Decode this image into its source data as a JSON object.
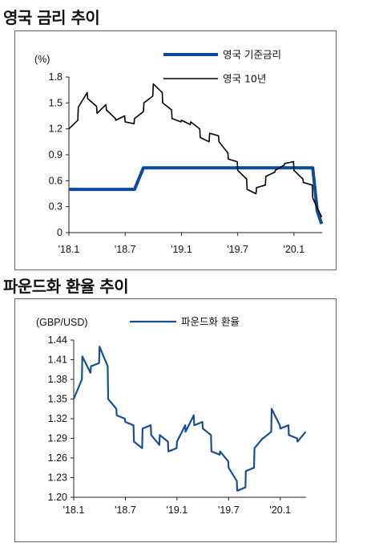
{
  "titles": {
    "top": "영국 금리 추이",
    "bottom": "파운드화 환율 추이"
  },
  "colors": {
    "policy_rate": "#0b4a9c",
    "gilt_10y": "#000000",
    "gbp_usd": "#174f96"
  },
  "chart_data": [
    {
      "type": "line",
      "unit_label": "(%)",
      "ylim": [
        0,
        1.8
      ],
      "yticks": [
        "1.8",
        "1.5",
        "1.2",
        "0.9",
        "0.6",
        "0.3",
        "0"
      ],
      "ytick_values": [
        1.8,
        1.5,
        1.2,
        0.9,
        0.6,
        0.3,
        0
      ],
      "xlim": [
        "2018-01",
        "2020-04"
      ],
      "xticks": [
        "'18.1",
        "'18.7",
        "'19.1",
        "'19.7",
        "'20.1"
      ],
      "xtick_values": [
        "2018-01",
        "2018-07",
        "2019-01",
        "2019-07",
        "2020-01"
      ],
      "legend_position": "top-right",
      "series": [
        {
          "name": "영국 기준금리",
          "style": "step",
          "points": [
            [
              "2018-01",
              0.5
            ],
            [
              "2018-08",
              0.5
            ],
            [
              "2018-08",
              0.75
            ],
            [
              "2020-03",
              0.75
            ],
            [
              "2020-03",
              0.25
            ],
            [
              "2020-03",
              0.1
            ]
          ]
        },
        {
          "name": "영국 10년",
          "points": [
            [
              "2018-01",
              1.2
            ],
            [
              "2018-01",
              1.3
            ],
            [
              "2018-02",
              1.45
            ],
            [
              "2018-02",
              1.62
            ],
            [
              "2018-03",
              1.55
            ],
            [
              "2018-03",
              1.46
            ],
            [
              "2018-04",
              1.38
            ],
            [
              "2018-04",
              1.48
            ],
            [
              "2018-05",
              1.42
            ],
            [
              "2018-05",
              1.32
            ],
            [
              "2018-06",
              1.3
            ],
            [
              "2018-06",
              1.35
            ],
            [
              "2018-07",
              1.28
            ],
            [
              "2018-07",
              1.26
            ],
            [
              "2018-08",
              1.32
            ],
            [
              "2018-08",
              1.4
            ],
            [
              "2018-09",
              1.5
            ],
            [
              "2018-09",
              1.58
            ],
            [
              "2018-10",
              1.72
            ],
            [
              "2018-10",
              1.62
            ],
            [
              "2018-11",
              1.5
            ],
            [
              "2018-11",
              1.42
            ],
            [
              "2018-12",
              1.32
            ],
            [
              "2018-12",
              1.28
            ],
            [
              "2019-01",
              1.3
            ],
            [
              "2019-01",
              1.25
            ],
            [
              "2019-02",
              1.28
            ],
            [
              "2019-02",
              1.2
            ],
            [
              "2019-03",
              1.1
            ],
            [
              "2019-03",
              1.05
            ],
            [
              "2019-04",
              1.15
            ],
            [
              "2019-04",
              1.12
            ],
            [
              "2019-05",
              1.05
            ],
            [
              "2019-05",
              0.92
            ],
            [
              "2019-06",
              0.85
            ],
            [
              "2019-06",
              0.82
            ],
            [
              "2019-07",
              0.72
            ],
            [
              "2019-07",
              0.62
            ],
            [
              "2019-08",
              0.5
            ],
            [
              "2019-08",
              0.45
            ],
            [
              "2019-09",
              0.52
            ],
            [
              "2019-09",
              0.55
            ],
            [
              "2019-10",
              0.65
            ],
            [
              "2019-10",
              0.7
            ],
            [
              "2019-11",
              0.72
            ],
            [
              "2019-11",
              0.78
            ],
            [
              "2019-12",
              0.8
            ],
            [
              "2019-12",
              0.82
            ],
            [
              "2020-01",
              0.72
            ],
            [
              "2020-01",
              0.62
            ],
            [
              "2020-02",
              0.58
            ],
            [
              "2020-02",
              0.55
            ],
            [
              "2020-03",
              0.4
            ],
            [
              "2020-03",
              0.18
            ]
          ]
        }
      ]
    },
    {
      "type": "line",
      "unit_label": "(GBP/USD)",
      "ylim": [
        1.2,
        1.44
      ],
      "yticks": [
        "1.44",
        "1.41",
        "1.38",
        "1.35",
        "1.32",
        "1.29",
        "1.26",
        "1.23",
        "1.20"
      ],
      "ytick_values": [
        1.44,
        1.41,
        1.38,
        1.35,
        1.32,
        1.29,
        1.26,
        1.23,
        1.2
      ],
      "xlim": [
        "2018-01",
        "2020-04"
      ],
      "xticks": [
        "'18.1",
        "'18.7",
        "'19.1",
        "'19.7",
        "'20.1"
      ],
      "xtick_values": [
        "2018-01",
        "2018-07",
        "2019-01",
        "2019-07",
        "2020-01"
      ],
      "legend_position": "top-right",
      "series": [
        {
          "name": "파운드화 환율",
          "points": [
            [
              "2018-01",
              1.35
            ],
            [
              "2018-01",
              1.38
            ],
            [
              "2018-02",
              1.415
            ],
            [
              "2018-02",
              1.39
            ],
            [
              "2018-03",
              1.4
            ],
            [
              "2018-03",
              1.405
            ],
            [
              "2018-04",
              1.43
            ],
            [
              "2018-04",
              1.4
            ],
            [
              "2018-05",
              1.35
            ],
            [
              "2018-05",
              1.335
            ],
            [
              "2018-06",
              1.325
            ],
            [
              "2018-06",
              1.32
            ],
            [
              "2018-07",
              1.315
            ],
            [
              "2018-07",
              1.31
            ],
            [
              "2018-08",
              1.285
            ],
            [
              "2018-08",
              1.275
            ],
            [
              "2018-09",
              1.305
            ],
            [
              "2018-09",
              1.31
            ],
            [
              "2018-10",
              1.295
            ],
            [
              "2018-10",
              1.28
            ],
            [
              "2018-11",
              1.295
            ],
            [
              "2018-11",
              1.285
            ],
            [
              "2018-12",
              1.27
            ],
            [
              "2018-12",
              1.275
            ],
            [
              "2019-01",
              1.285
            ],
            [
              "2019-01",
              1.31
            ],
            [
              "2019-02",
              1.3
            ],
            [
              "2019-02",
              1.325
            ],
            [
              "2019-03",
              1.31
            ],
            [
              "2019-03",
              1.315
            ],
            [
              "2019-04",
              1.305
            ],
            [
              "2019-04",
              1.295
            ],
            [
              "2019-05",
              1.27
            ],
            [
              "2019-05",
              1.265
            ],
            [
              "2019-06",
              1.27
            ],
            [
              "2019-06",
              1.255
            ],
            [
              "2019-07",
              1.245
            ],
            [
              "2019-07",
              1.225
            ],
            [
              "2019-08",
              1.21
            ],
            [
              "2019-08",
              1.215
            ],
            [
              "2019-09",
              1.24
            ],
            [
              "2019-09",
              1.245
            ],
            [
              "2019-10",
              1.275
            ],
            [
              "2019-10",
              1.29
            ],
            [
              "2019-11",
              1.29
            ],
            [
              "2019-11",
              1.3
            ],
            [
              "2019-12",
              1.335
            ],
            [
              "2019-12",
              1.31
            ],
            [
              "2020-01",
              1.305
            ],
            [
              "2020-01",
              1.31
            ],
            [
              "2020-02",
              1.295
            ],
            [
              "2020-02",
              1.29
            ],
            [
              "2020-03",
              1.285
            ],
            [
              "2020-03",
              1.3
            ]
          ]
        }
      ]
    }
  ]
}
